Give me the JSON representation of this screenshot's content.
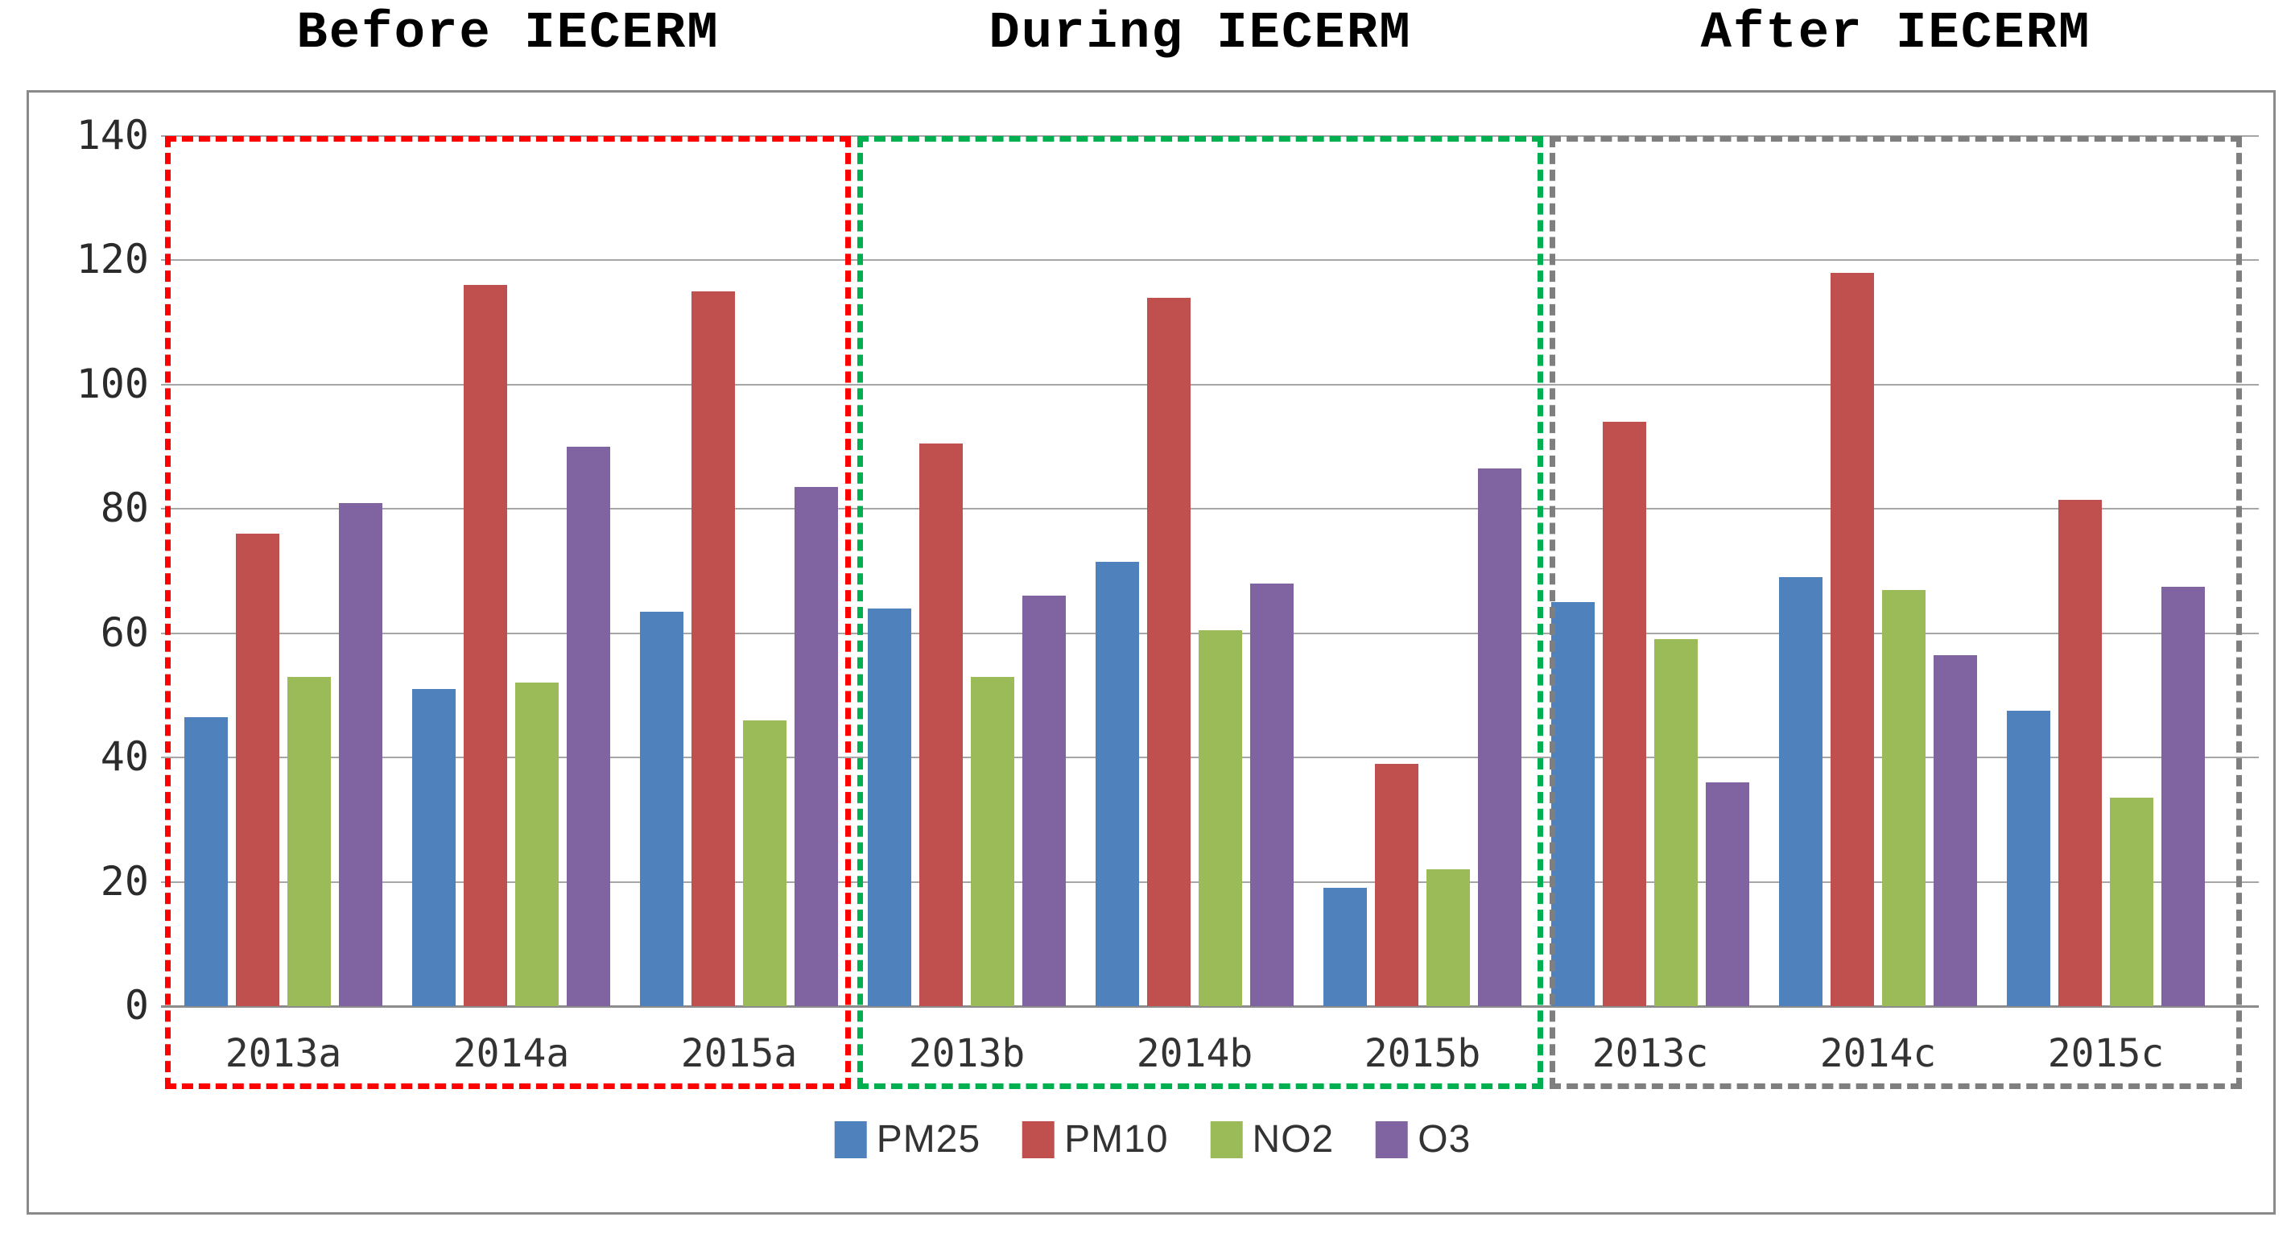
{
  "titles": {
    "before": "Before IECERM",
    "during": "During IECERM",
    "after": "After IECERM"
  },
  "colors": {
    "pm25": "#4F81BD",
    "pm10": "#C0504D",
    "no2": "#9BBB59",
    "o3": "#8064A2",
    "box_before": "#FF0000",
    "box_during": "#00B050",
    "box_after": "#7F7F7F",
    "gridline": "#A6A6A6",
    "frame": "#8A8A8A"
  },
  "chart_data": {
    "type": "bar",
    "title": "",
    "xlabel": "",
    "ylabel": "",
    "ylim": [
      0,
      140
    ],
    "yticks": [
      0,
      20,
      40,
      60,
      80,
      100,
      120,
      140
    ],
    "grid": true,
    "legend_position": "bottom",
    "categories": [
      "2013a",
      "2014a",
      "2015a",
      "2013b",
      "2014b",
      "2015b",
      "2013c",
      "2014c",
      "2015c"
    ],
    "series": [
      {
        "name": "PM25",
        "color": "#4F81BD",
        "values": [
          46.5,
          51,
          63.5,
          64,
          71.5,
          19,
          65,
          69,
          47.5
        ]
      },
      {
        "name": "PM10",
        "color": "#C0504D",
        "values": [
          76,
          116,
          115,
          90.5,
          114,
          39,
          94,
          118,
          81.5
        ]
      },
      {
        "name": "NO2",
        "color": "#9BBB59",
        "values": [
          53,
          52,
          46,
          53,
          60.5,
          22,
          59,
          67,
          33.5
        ]
      },
      {
        "name": "O3",
        "color": "#8064A2",
        "values": [
          81,
          90,
          83.5,
          66,
          68,
          86.5,
          36,
          56.5,
          67.5
        ]
      }
    ],
    "sections": [
      {
        "label": "Before IECERM",
        "categories": [
          "2013a",
          "2014a",
          "2015a"
        ],
        "box_color": "#FF0000"
      },
      {
        "label": "During IECERM",
        "categories": [
          "2013b",
          "2014b",
          "2015b"
        ],
        "box_color": "#00B050"
      },
      {
        "label": "After IECERM",
        "categories": [
          "2013c",
          "2014c",
          "2015c"
        ],
        "box_color": "#7F7F7F"
      }
    ]
  }
}
